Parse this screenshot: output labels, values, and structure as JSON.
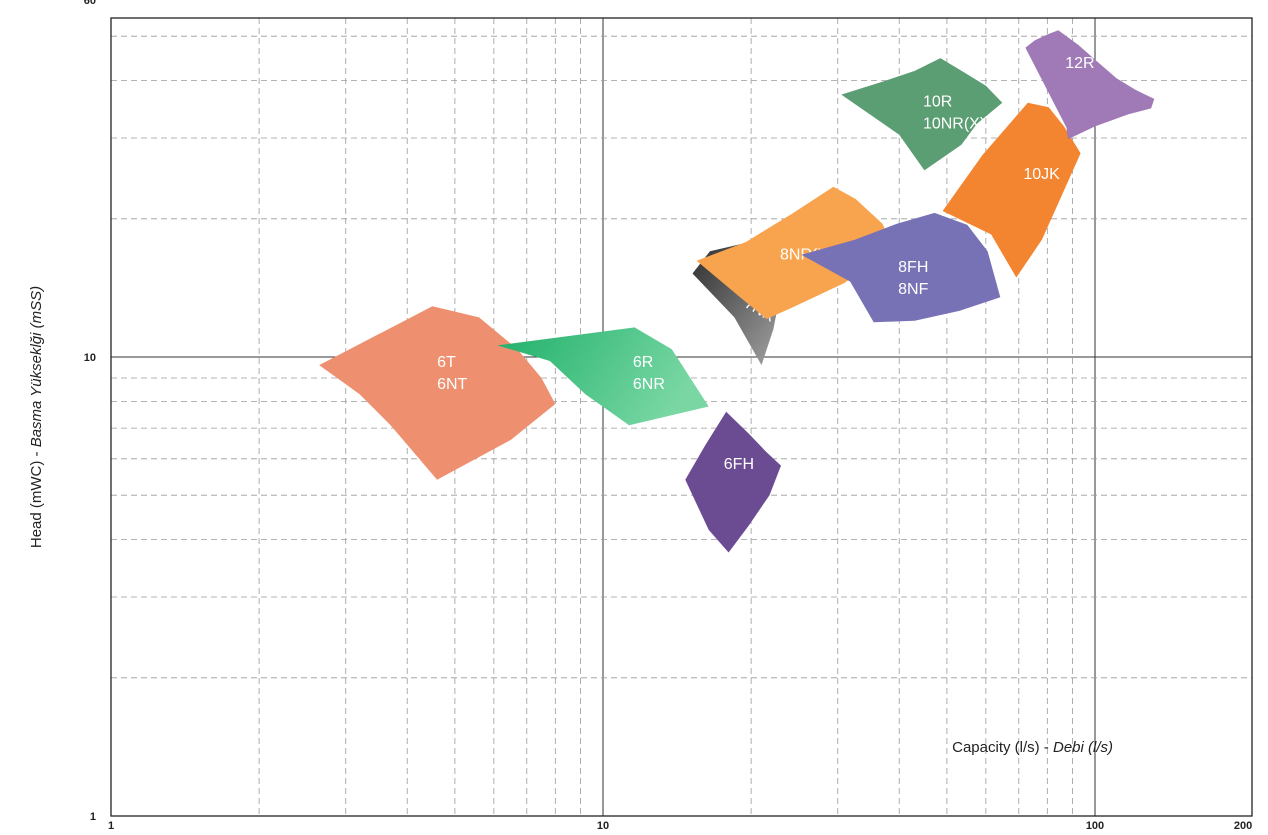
{
  "chart_data": {
    "type": "area",
    "title": "",
    "xlabel": {
      "normal": "Capacity (l/s) - ",
      "italic": "Debi (l/s)"
    },
    "ylabel": {
      "normal": "Head (mWC) - ",
      "italic": "Basma Yükseklği (mSS)"
    },
    "x_scale": "log",
    "y_scale": "log",
    "xlim": [
      1,
      200
    ],
    "ylim": [
      1,
      60
    ],
    "x_ticks": [
      1,
      10,
      100,
      200
    ],
    "x_tick_labels": [
      "1",
      "10",
      "100",
      "200"
    ],
    "y_ticks": [
      1,
      10,
      60
    ],
    "y_tick_labels": [
      "1",
      "10",
      "60"
    ],
    "grid": true,
    "legend": "none",
    "zones": [
      {
        "name": "7NR",
        "lines": [
          "7NR"
        ],
        "color": "#3a3a3a",
        "color2": "#9a9a9a",
        "gradient": true,
        "rotate": 30,
        "polygon": [
          [
            16.5,
            17
          ],
          [
            15.2,
            15.2
          ],
          [
            18.5,
            12.2
          ],
          [
            21,
            9.6
          ],
          [
            22.2,
            11.5
          ],
          [
            23,
            14
          ],
          [
            22,
            16.5
          ],
          [
            19,
            17.6
          ]
        ],
        "label_at": [
          19.3,
          12.9
        ]
      },
      {
        "name": "6T/6NT",
        "lines": [
          "6T",
          "6NT"
        ],
        "color": "#ee8f6f",
        "polygon": [
          [
            2.65,
            9.6
          ],
          [
            4.5,
            12.9
          ],
          [
            5.6,
            12.2
          ],
          [
            6.7,
            10.4
          ],
          [
            7.5,
            9
          ],
          [
            8.0,
            7.9
          ],
          [
            6.5,
            6.6
          ],
          [
            4.6,
            5.4
          ],
          [
            3.7,
            7.1
          ],
          [
            3.2,
            8.3
          ]
        ],
        "label_at": [
          4.6,
          9.5
        ]
      },
      {
        "name": "6R/6NR",
        "lines": [
          "6R",
          "6NR"
        ],
        "color": "#1fb06a",
        "color2": "#77d8a0",
        "gradient": true,
        "polygon": [
          [
            6.1,
            10.6
          ],
          [
            11.6,
            11.6
          ],
          [
            13.8,
            10.4
          ],
          [
            16.4,
            7.8
          ],
          [
            11.3,
            7.1
          ],
          [
            9.2,
            8.3
          ],
          [
            7.8,
            9.8
          ]
        ],
        "label_at": [
          11.5,
          9.5
        ]
      },
      {
        "name": "6FH",
        "lines": [
          "6FH"
        ],
        "color": "#6b4c92",
        "polygon": [
          [
            17.8,
            7.6
          ],
          [
            19.8,
            6.8
          ],
          [
            21.5,
            6.2
          ],
          [
            23,
            5.8
          ],
          [
            21.8,
            5.0
          ],
          [
            19.8,
            4.3
          ],
          [
            18.0,
            3.75
          ],
          [
            16.4,
            4.2
          ],
          [
            14.7,
            5.4
          ],
          [
            16.1,
            6.4
          ]
        ],
        "label_at": [
          17.6,
          5.7
        ]
      },
      {
        "name": "8NR(X)",
        "lines": [
          "8NR(X)"
        ],
        "color": "#f8a44f",
        "polygon": [
          [
            15.5,
            16.2
          ],
          [
            19.5,
            17.8
          ],
          [
            24.2,
            20.5
          ],
          [
            29.4,
            23.5
          ],
          [
            32.6,
            22.1
          ],
          [
            37,
            19.5
          ],
          [
            38.8,
            17.4
          ],
          [
            31,
            14.5
          ],
          [
            24.2,
            12.8
          ],
          [
            21.5,
            12.1
          ],
          [
            19,
            13.5
          ]
        ],
        "label_at": [
          22.9,
          16.3
        ]
      },
      {
        "name": "8FH/8NF",
        "lines": [
          "8FH",
          "8NF"
        ],
        "color": "#7771b5",
        "polygon": [
          [
            25.3,
            16.7
          ],
          [
            32.5,
            18
          ],
          [
            39.5,
            19.5
          ],
          [
            47.2,
            20.6
          ],
          [
            55,
            19.4
          ],
          [
            60.5,
            17
          ],
          [
            64.2,
            13.5
          ],
          [
            53,
            12.6
          ],
          [
            43,
            12.0
          ],
          [
            35.5,
            11.9
          ],
          [
            31.8,
            14.6
          ]
        ],
        "label_at": [
          39.8,
          15.3
        ]
      },
      {
        "name": "10R/10NR(X)",
        "lines": [
          "10R",
          "10NR(X)"
        ],
        "color": "#5c9e74",
        "polygon": [
          [
            30.5,
            37.3
          ],
          [
            37.5,
            40
          ],
          [
            43,
            42
          ],
          [
            48.5,
            44.8
          ],
          [
            54,
            41.8
          ],
          [
            60,
            39
          ],
          [
            64.8,
            35.8
          ],
          [
            57.5,
            32.2
          ],
          [
            53.5,
            29
          ],
          [
            45,
            25.5
          ],
          [
            40,
            30.5
          ]
        ],
        "label_at": [
          44.7,
          35.1
        ]
      },
      {
        "name": "10JK",
        "lines": [
          "10JK"
        ],
        "color": "#f38430",
        "polygon": [
          [
            49,
            20.8
          ],
          [
            59,
            27.5
          ],
          [
            73,
            35.8
          ],
          [
            80.5,
            35
          ],
          [
            86.5,
            31.8
          ],
          [
            93.5,
            27.8
          ],
          [
            84.5,
            21.8
          ],
          [
            78,
            18
          ],
          [
            69.2,
            14.9
          ],
          [
            61.5,
            18.5
          ]
        ],
        "label_at": [
          71.5,
          24.4
        ]
      },
      {
        "name": "12R",
        "lines": [
          "12R"
        ],
        "color": "#a07ab6",
        "polygon": [
          [
            72.2,
            47.2
          ],
          [
            75.5,
            49
          ],
          [
            80.2,
            50.5
          ],
          [
            84.2,
            51.5
          ],
          [
            92.6,
            47.8
          ],
          [
            100.6,
            44.2
          ],
          [
            110.6,
            40.5
          ],
          [
            120.8,
            38.2
          ],
          [
            132,
            36.5
          ],
          [
            130,
            34.8
          ],
          [
            117,
            33.8
          ],
          [
            100,
            31.8
          ],
          [
            88.1,
            29.8
          ],
          [
            87.5,
            31.6
          ]
        ],
        "label_at": [
          87,
          42.6
        ]
      }
    ]
  }
}
